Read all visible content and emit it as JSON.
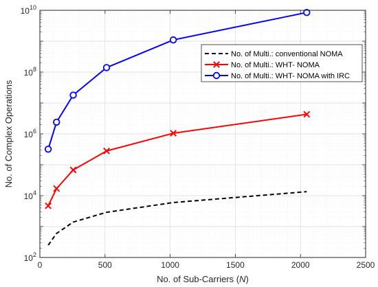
{
  "chart_data": {
    "type": "line",
    "title": "",
    "xlabel": "No. of Sub-Carriers ",
    "xlabel_var": "N",
    "ylabel": "No. of Complex Operations",
    "xlim": [
      0,
      2500
    ],
    "ylim": [
      100,
      10000000000
    ],
    "yscale": "log",
    "grid": true,
    "legend_position": "top-right",
    "x_ticks": [
      "0",
      "500",
      "1000",
      "1500",
      "2000",
      "2500"
    ],
    "y_ticks": [
      {
        "base": "10",
        "exp": "2"
      },
      {
        "base": "10",
        "exp": "4"
      },
      {
        "base": "10",
        "exp": "6"
      },
      {
        "base": "10",
        "exp": "8"
      },
      {
        "base": "10",
        "exp": "10"
      }
    ],
    "series": [
      {
        "name": "No. of Multi.: conventional NOMA",
        "color": "#000000",
        "style": "dashed",
        "marker": "none",
        "x": [
          64,
          128,
          256,
          512,
          1024,
          2048
        ],
        "y": [
          250,
          600,
          1400,
          2900,
          6000,
          13500
        ]
      },
      {
        "name": "No. of Multi.: WHT- NOMA",
        "color": "#ff0000",
        "style": "solid",
        "marker": "x",
        "x": [
          64,
          128,
          256,
          512,
          1024,
          2048
        ],
        "y": [
          4700,
          17000,
          68000,
          280000,
          1050000,
          4300000
        ]
      },
      {
        "name": "No. of Multi.: WHT- NOMA with IRC",
        "color": "#0000ff",
        "style": "solid",
        "marker": "circle",
        "x": [
          64,
          128,
          256,
          512,
          1024,
          2048
        ],
        "y": [
          320000,
          2400000,
          18000000,
          140000000,
          1100000000,
          8500000000
        ]
      }
    ]
  }
}
